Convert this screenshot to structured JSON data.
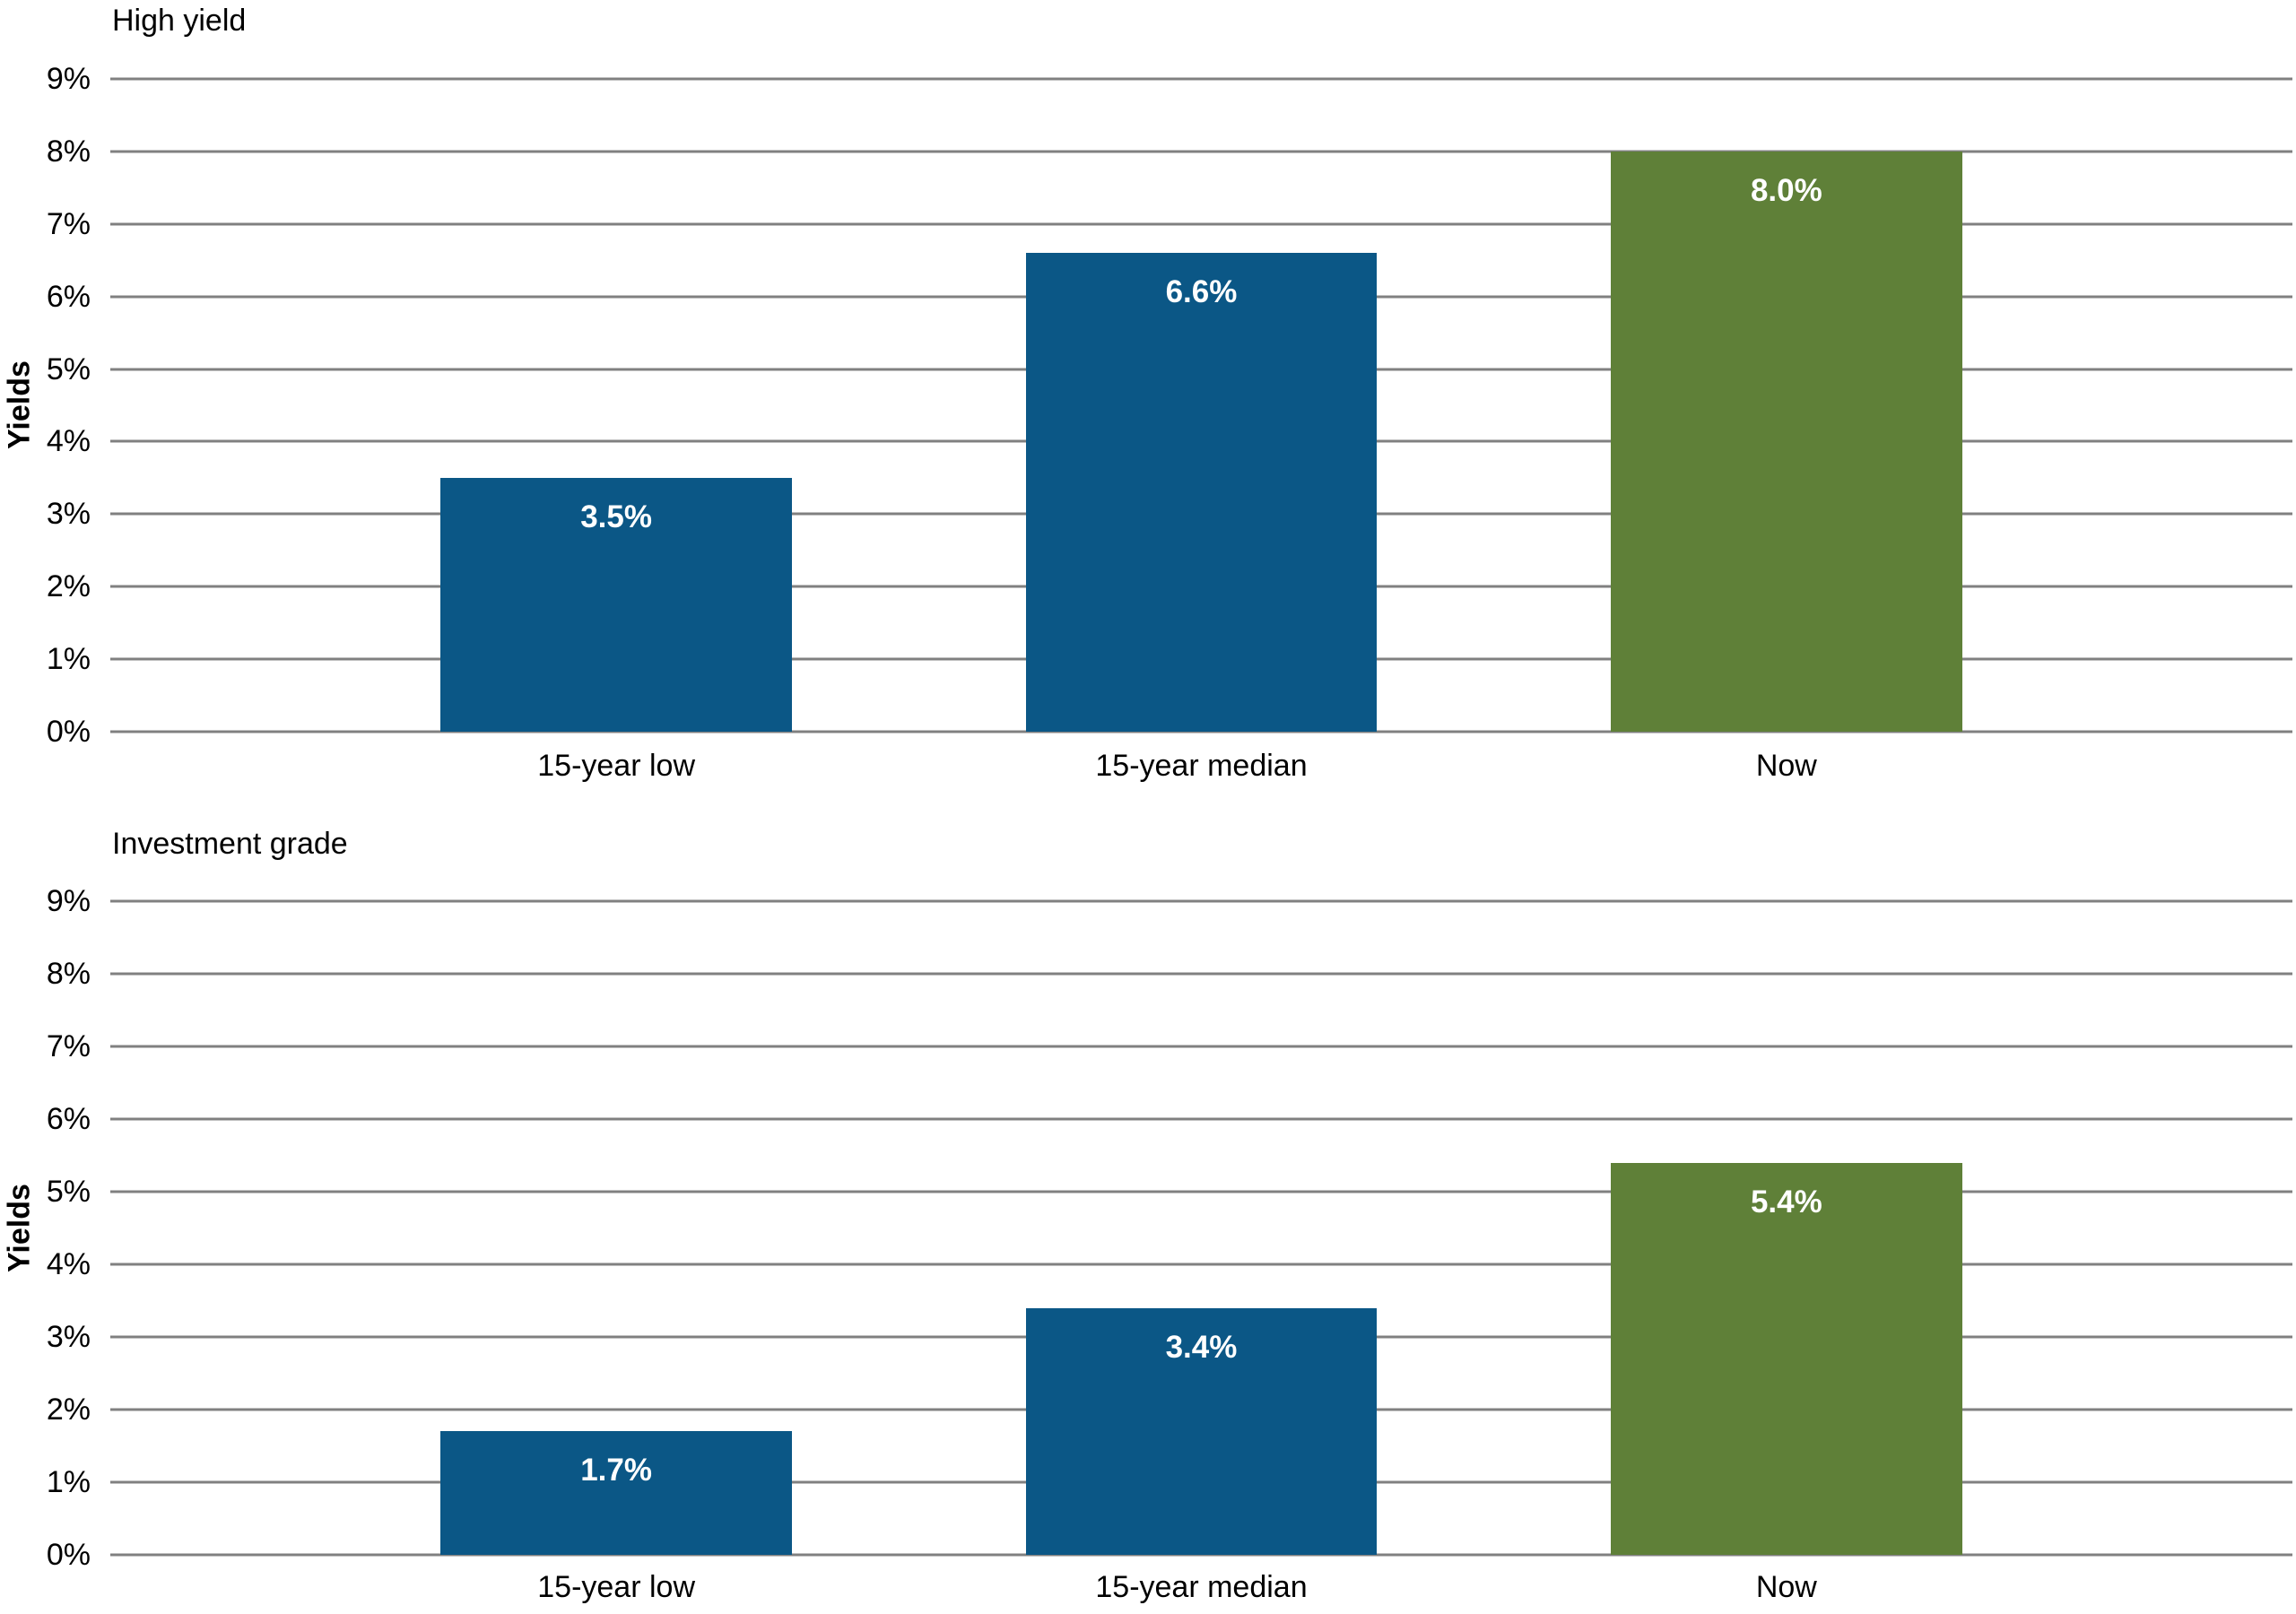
{
  "colors": {
    "bar_blue": "#0B5786",
    "bar_green": "#5F8038",
    "gridline": "#808080",
    "value_label_text": "#FFFFFF",
    "axis_text": "#000000",
    "background": "#FFFFFF"
  },
  "chart_data": [
    {
      "type": "bar",
      "title": "High yield",
      "xlabel": "",
      "ylabel": "Yields",
      "categories": [
        "15-year low",
        "15-year median",
        "Now"
      ],
      "values": [
        3.5,
        6.6,
        8.0
      ],
      "value_labels": [
        "3.5%",
        "6.6%",
        "8.0%"
      ],
      "bar_colors": [
        "#0B5786",
        "#0B5786",
        "#5F8038"
      ],
      "ylim": [
        0,
        9
      ],
      "ytick_step": 1,
      "ytick_labels": [
        "0%",
        "1%",
        "2%",
        "3%",
        "4%",
        "5%",
        "6%",
        "7%",
        "8%",
        "9%"
      ],
      "grid": true,
      "legend_position": "none"
    },
    {
      "type": "bar",
      "title": "Investment grade",
      "xlabel": "",
      "ylabel": "Yields",
      "categories": [
        "15-year low",
        "15-year median",
        "Now"
      ],
      "values": [
        1.7,
        3.4,
        5.4
      ],
      "value_labels": [
        "1.7%",
        "3.4%",
        "5.4%"
      ],
      "bar_colors": [
        "#0B5786",
        "#0B5786",
        "#5F8038"
      ],
      "ylim": [
        0,
        9
      ],
      "ytick_step": 1,
      "ytick_labels": [
        "0%",
        "1%",
        "2%",
        "3%",
        "4%",
        "5%",
        "6%",
        "7%",
        "8%",
        "9%"
      ],
      "grid": true,
      "legend_position": "none"
    }
  ]
}
